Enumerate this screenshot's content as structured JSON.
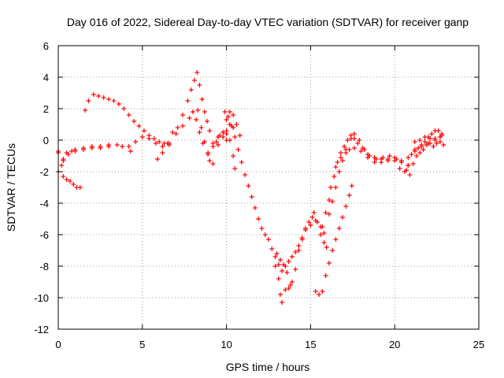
{
  "chart_data": {
    "type": "scatter",
    "title": "Day 016 of 2022, Sidereal Day-to-day VTEC variation (SDTVAR) for receiver ganp",
    "xlabel": "GPS time / hours",
    "ylabel": "SDTVAR / TECUs",
    "xlim": [
      0,
      25
    ],
    "ylim": [
      -12,
      6
    ],
    "xticks": [
      0,
      5,
      10,
      15,
      20,
      25
    ],
    "yticks": [
      -12,
      -10,
      -8,
      -6,
      -4,
      -2,
      0,
      2,
      4,
      6
    ],
    "grid": true,
    "marker": "plus",
    "color": "#ff0000",
    "series": [
      {
        "points": [
          [
            0.0,
            -0.7
          ],
          [
            0.2,
            -1.6
          ],
          [
            0.3,
            -2.3
          ],
          [
            0.5,
            -2.5
          ],
          [
            0.7,
            -2.6
          ],
          [
            0.9,
            -2.8
          ],
          [
            1.1,
            -3.0
          ],
          [
            1.3,
            -3.0
          ],
          [
            0.0,
            -0.8
          ],
          [
            0.3,
            -1.2
          ],
          [
            0.5,
            -0.8
          ],
          [
            0.8,
            -0.7
          ],
          [
            1.0,
            -0.6
          ],
          [
            1.5,
            -0.5
          ],
          [
            2.0,
            -0.4
          ],
          [
            2.5,
            -0.4
          ],
          [
            3.0,
            -0.3
          ],
          [
            3.5,
            -0.3
          ],
          [
            3.8,
            -0.4
          ],
          [
            4.2,
            -0.4
          ],
          [
            4.3,
            -0.7
          ],
          [
            4.6,
            -0.1
          ],
          [
            5.0,
            0.2
          ],
          [
            5.4,
            0.1
          ],
          [
            5.8,
            -0.2
          ],
          [
            6.2,
            -0.4
          ],
          [
            6.6,
            -0.2
          ],
          [
            7.0,
            0.4
          ],
          [
            7.4,
            0.9
          ],
          [
            7.8,
            1.4
          ],
          [
            8.0,
            1.8
          ],
          [
            8.2,
            1.3
          ],
          [
            8.4,
            0.5
          ],
          [
            8.6,
            -0.2
          ],
          [
            8.9,
            -0.8
          ],
          [
            9.2,
            -0.4
          ],
          [
            9.5,
            0.2
          ],
          [
            9.8,
            0.5
          ],
          [
            10.0,
            0.0
          ],
          [
            0.0,
            -2.0
          ],
          [
            0.3,
            -1.3
          ],
          [
            0.6,
            -0.9
          ],
          [
            1.0,
            -0.7
          ],
          [
            1.5,
            -0.6
          ],
          [
            2.0,
            -0.5
          ],
          [
            2.5,
            -0.5
          ],
          [
            3.0,
            -0.4
          ],
          [
            1.6,
            1.9
          ],
          [
            1.8,
            2.5
          ],
          [
            2.1,
            2.9
          ],
          [
            2.4,
            2.8
          ],
          [
            2.7,
            2.7
          ],
          [
            3.0,
            2.6
          ],
          [
            3.3,
            2.5
          ],
          [
            3.6,
            2.3
          ],
          [
            3.9,
            2.0
          ],
          [
            4.2,
            1.6
          ],
          [
            4.5,
            1.2
          ],
          [
            4.8,
            0.9
          ],
          [
            5.1,
            0.6
          ],
          [
            5.4,
            0.3
          ],
          [
            5.7,
            0.1
          ],
          [
            6.0,
            -0.1
          ],
          [
            6.3,
            -0.2
          ],
          [
            6.6,
            -0.3
          ],
          [
            5.9,
            -1.2
          ],
          [
            6.2,
            -0.8
          ],
          [
            6.5,
            -0.2
          ],
          [
            6.8,
            0.5
          ],
          [
            7.1,
            0.8
          ],
          [
            7.4,
            1.6
          ],
          [
            7.7,
            2.5
          ],
          [
            7.9,
            3.2
          ],
          [
            8.1,
            3.8
          ],
          [
            8.25,
            4.3
          ],
          [
            8.4,
            3.5
          ],
          [
            8.55,
            2.6
          ],
          [
            8.7,
            1.8
          ],
          [
            8.85,
            1.2
          ],
          [
            9.0,
            0.6
          ],
          [
            9.2,
            -0.2
          ],
          [
            9.4,
            -0.1
          ],
          [
            9.6,
            0.3
          ],
          [
            9.8,
            0.2
          ],
          [
            10.0,
            0.6
          ],
          [
            10.2,
            1.0
          ],
          [
            10.4,
            0.8
          ],
          [
            8.3,
            1.9
          ],
          [
            8.5,
            0.8
          ],
          [
            8.7,
            -0.1
          ],
          [
            8.9,
            -0.9
          ],
          [
            9.0,
            -1.3
          ],
          [
            9.2,
            -1.5
          ],
          [
            9.5,
            -0.3
          ],
          [
            9.8,
            0.5
          ],
          [
            10.0,
            1.3
          ],
          [
            10.2,
            1.8
          ],
          [
            10.4,
            1.6
          ],
          [
            10.6,
            1.0
          ],
          [
            10.8,
            0.3
          ],
          [
            9.9,
            1.8
          ],
          [
            10.1,
            1.5
          ],
          [
            10.3,
            0.9
          ],
          [
            10.5,
            0.2
          ],
          [
            10.7,
            -0.6
          ],
          [
            10.9,
            -1.4
          ],
          [
            11.1,
            -2.2
          ],
          [
            11.3,
            -2.9
          ],
          [
            11.5,
            -3.6
          ],
          [
            11.7,
            -4.3
          ],
          [
            11.9,
            -5.0
          ],
          [
            12.1,
            -5.6
          ],
          [
            12.3,
            -6.0
          ],
          [
            12.5,
            -6.3
          ],
          [
            12.7,
            -6.9
          ],
          [
            12.9,
            -7.4
          ],
          [
            13.1,
            -7.9
          ],
          [
            13.3,
            -8.3
          ],
          [
            13.5,
            -8.0
          ],
          [
            13.7,
            -7.7
          ],
          [
            13.9,
            -7.4
          ],
          [
            14.1,
            -7.1
          ],
          [
            14.3,
            -6.7
          ],
          [
            14.5,
            -6.3
          ],
          [
            14.7,
            -5.7
          ],
          [
            15.0,
            -5.4
          ],
          [
            15.3,
            -5.1
          ],
          [
            15.6,
            -5.5
          ],
          [
            15.8,
            -5.9
          ],
          [
            10.0,
            0.4
          ],
          [
            10.2,
            0.0
          ],
          [
            10.4,
            -1.0
          ],
          [
            10.5,
            -1.8
          ],
          [
            12.9,
            -8.0
          ],
          [
            13.1,
            -8.8
          ],
          [
            13.2,
            -9.8
          ],
          [
            13.3,
            -10.3
          ],
          [
            13.5,
            -9.5
          ],
          [
            13.7,
            -9.4
          ],
          [
            13.9,
            -9.0
          ],
          [
            14.1,
            -8.2
          ],
          [
            14.3,
            -7.0
          ],
          [
            14.5,
            -6.2
          ],
          [
            14.7,
            -5.6
          ],
          [
            14.9,
            -5.2
          ],
          [
            15.1,
            -4.9
          ],
          [
            13.0,
            -7.2
          ],
          [
            13.2,
            -7.6
          ],
          [
            13.4,
            -7.9
          ],
          [
            13.6,
            -8.4
          ],
          [
            13.8,
            -9.2
          ],
          [
            15.2,
            -4.6
          ],
          [
            15.4,
            -5.2
          ],
          [
            15.6,
            -6.0
          ],
          [
            15.8,
            -6.5
          ],
          [
            15.95,
            -6.8
          ],
          [
            15.7,
            -5.5
          ],
          [
            15.9,
            -4.6
          ],
          [
            16.1,
            -3.8
          ],
          [
            16.2,
            -3.0
          ],
          [
            16.4,
            -2.3
          ],
          [
            16.6,
            -1.4
          ],
          [
            16.8,
            -0.8
          ],
          [
            17.0,
            -0.4
          ],
          [
            17.2,
            0.0
          ],
          [
            17.4,
            0.3
          ],
          [
            17.6,
            0.1
          ],
          [
            17.8,
            -0.2
          ],
          [
            18.1,
            -0.5
          ],
          [
            18.4,
            -0.9
          ],
          [
            18.8,
            -1.1
          ],
          [
            19.2,
            -1.2
          ],
          [
            19.6,
            -1.3
          ],
          [
            20.0,
            -1.3
          ],
          [
            20.4,
            -1.4
          ],
          [
            20.8,
            -1.1
          ],
          [
            21.2,
            -0.7
          ],
          [
            21.6,
            -0.4
          ],
          [
            22.0,
            -0.2
          ],
          [
            22.4,
            0.1
          ],
          [
            22.8,
            0.3
          ],
          [
            16.1,
            -4.7
          ],
          [
            16.3,
            -3.9
          ],
          [
            16.5,
            -3.0
          ],
          [
            16.7,
            -2.0
          ],
          [
            16.9,
            -1.3
          ],
          [
            17.1,
            -0.8
          ],
          [
            17.3,
            -0.6
          ],
          [
            17.6,
            -0.5
          ],
          [
            18.0,
            -0.7
          ],
          [
            18.4,
            -1.1
          ],
          [
            18.8,
            -1.4
          ],
          [
            19.2,
            -1.4
          ],
          [
            19.6,
            -1.2
          ],
          [
            20.0,
            -1.1
          ],
          [
            20.4,
            -1.3
          ],
          [
            20.8,
            -1.6
          ],
          [
            15.3,
            -9.6
          ],
          [
            15.5,
            -9.8
          ],
          [
            15.7,
            -9.6
          ],
          [
            15.9,
            -8.6
          ],
          [
            16.1,
            -7.8
          ],
          [
            16.3,
            -7.0
          ],
          [
            16.5,
            -6.3
          ],
          [
            16.7,
            -5.6
          ],
          [
            16.9,
            -4.9
          ],
          [
            17.1,
            -4.2
          ],
          [
            17.3,
            -3.5
          ],
          [
            17.45,
            -2.9
          ],
          [
            16.5,
            -1.7
          ],
          [
            16.8,
            -1.1
          ],
          [
            17.1,
            -0.6
          ],
          [
            17.4,
            0.1
          ],
          [
            17.6,
            0.4
          ],
          [
            17.9,
            0.0
          ],
          [
            18.2,
            -0.6
          ],
          [
            18.5,
            -1.0
          ],
          [
            18.9,
            -1.2
          ],
          [
            19.3,
            -1.1
          ],
          [
            19.7,
            -1.0
          ],
          [
            20.1,
            -1.2
          ],
          [
            20.3,
            -1.8
          ],
          [
            20.6,
            -2.0
          ],
          [
            20.8,
            -1.6
          ],
          [
            21.0,
            -0.9
          ],
          [
            21.2,
            -0.6
          ],
          [
            21.4,
            -0.5
          ],
          [
            21.6,
            -0.3
          ],
          [
            21.8,
            -0.1
          ],
          [
            22.0,
            0.2
          ],
          [
            22.2,
            0.4
          ],
          [
            22.4,
            0.6
          ],
          [
            22.6,
            0.6
          ],
          [
            22.8,
            0.4
          ],
          [
            20.7,
            -1.9
          ],
          [
            20.9,
            -2.2
          ],
          [
            21.1,
            -1.5
          ],
          [
            21.3,
            -1.0
          ],
          [
            21.5,
            -0.8
          ],
          [
            21.7,
            -0.6
          ],
          [
            21.9,
            -0.3
          ],
          [
            22.1,
            -0.2
          ],
          [
            22.3,
            -0.4
          ],
          [
            22.5,
            -0.2
          ],
          [
            22.7,
            -0.1
          ],
          [
            22.9,
            -0.3
          ],
          [
            21.2,
            -0.1
          ],
          [
            21.5,
            0.0
          ],
          [
            21.8,
            0.2
          ],
          [
            22.1,
            0.1
          ],
          [
            22.4,
            0.0
          ],
          [
            22.7,
            0.2
          ]
        ]
      }
    ]
  }
}
